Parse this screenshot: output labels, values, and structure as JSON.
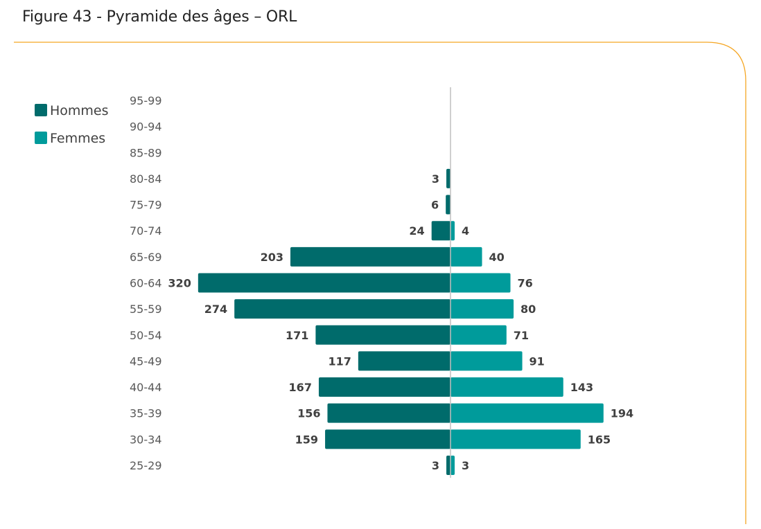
{
  "header": {
    "title": "Figure 43 - Pyramide des âges – ORL"
  },
  "colors": {
    "frame": "#F5A623",
    "axis": "#BFBFBF"
  },
  "chart_data": {
    "type": "bar",
    "orientation": "horizontal-pyramid",
    "categories": [
      "95-99",
      "90-94",
      "85-89",
      "80-84",
      "75-79",
      "70-74",
      "65-69",
      "60-64",
      "55-59",
      "50-54",
      "45-49",
      "40-44",
      "35-39",
      "30-34",
      "25-29"
    ],
    "series": [
      {
        "name": "Hommes",
        "color": "#006B6B",
        "side": "left",
        "values": [
          0,
          0,
          0,
          3,
          6,
          24,
          203,
          320,
          274,
          171,
          117,
          167,
          156,
          159,
          3
        ]
      },
      {
        "name": "Femmes",
        "color": "#009B9B",
        "side": "right",
        "values": [
          0,
          0,
          0,
          0,
          0,
          4,
          40,
          76,
          80,
          71,
          91,
          143,
          194,
          165,
          3
        ]
      }
    ],
    "legend_position": "top-left",
    "grid": false
  }
}
